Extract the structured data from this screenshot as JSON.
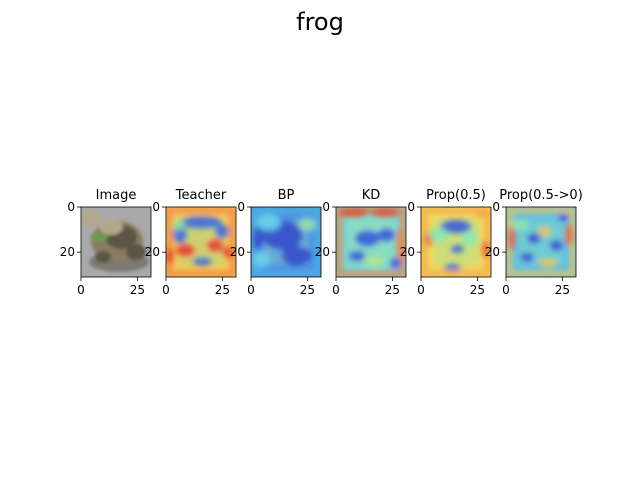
{
  "figure": {
    "suptitle": "frog"
  },
  "chart_data": {
    "type": "heatmap",
    "title": "frog",
    "xlim": [
      0,
      31
    ],
    "ylim": [
      31,
      0
    ],
    "x_ticks": [
      0,
      25
    ],
    "y_ticks": [
      0,
      20
    ],
    "panels": [
      {
        "id": "image",
        "title": "Image",
        "kind": "photo",
        "colors": {
          "bg": "#a9a9ab",
          "frog_dark": "#5b5545",
          "frog_mid": "#8a7d62",
          "frog_light": "#b3a88d",
          "green": "#6e9a4c",
          "shadow": "#7b7a72"
        }
      },
      {
        "id": "teacher",
        "title": "Teacher",
        "kind": "heatmap",
        "colors": {
          "bg": "#f4c541",
          "blue": "#2b5fe0",
          "red": "#e43020",
          "green": "#7ee0a0",
          "edge": "#ed7a3a"
        }
      },
      {
        "id": "bp",
        "title": "BP",
        "kind": "heatmap",
        "colors": {
          "bg": "#3a86e6",
          "blue": "#2240c8",
          "cyan": "#5cd0e8",
          "green": "#8fe0a8",
          "edge": "#40b0d8"
        }
      },
      {
        "id": "kd",
        "title": "KD",
        "kind": "heatmap",
        "colors": {
          "bg": "#68d3d8",
          "blue": "#2550d6",
          "red": "#e0402a",
          "green": "#a8e58a",
          "edge": "#e87a3a"
        }
      },
      {
        "id": "prop05",
        "title": "Prop(0.5)",
        "kind": "heatmap",
        "colors": {
          "bg": "#f2d34c",
          "blue": "#2a52d8",
          "red": "#e9582c",
          "green": "#7ee7b2",
          "edge": "#f0a23c"
        }
      },
      {
        "id": "prop05to0",
        "title": "Prop(0.5->0)",
        "kind": "heatmap",
        "colors": {
          "bg": "#4fb8e8",
          "blue": "#2446cc",
          "red": "#e05c3a",
          "green": "#8ae3a6",
          "edge": "#f0c04a"
        }
      }
    ]
  }
}
